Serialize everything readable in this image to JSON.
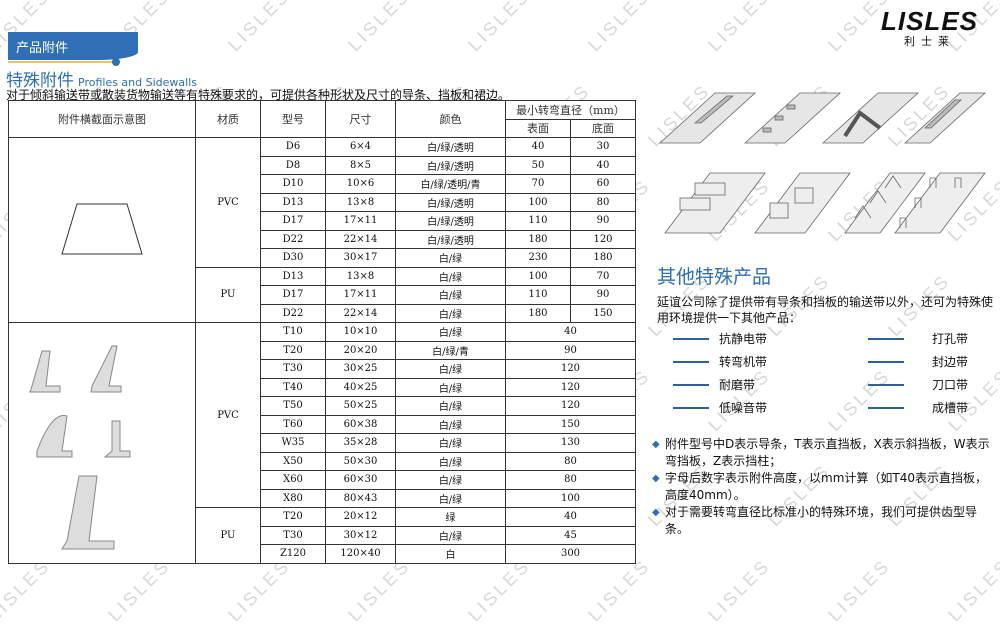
{
  "header": {
    "tab_label": "产品附件",
    "title": "特殊附件",
    "title_en": "Profiles and Sidewalls",
    "description": "对于倾斜输送带或散装货物输送等有特殊要求的，可提供各种形状及尺寸的导条、挡板和裙边。"
  },
  "logo": {
    "brand": "LISLES",
    "brand_cn": "利士莱"
  },
  "watermark": "LISLES",
  "table": {
    "headers": {
      "diagram": "附件横截面示意图",
      "material": "材质",
      "model": "型号",
      "size": "尺寸",
      "color": "颜色",
      "min_diameter": "最小转弯直径（mm）",
      "surface": "表面",
      "bottom": "底面"
    },
    "groups": [
      {
        "material": "PVC",
        "section": 1,
        "rows": [
          [
            "D6",
            "6×4",
            "白/绿/透明",
            "40",
            "30"
          ],
          [
            "D8",
            "8×5",
            "白/绿/透明",
            "50",
            "40"
          ],
          [
            "D10",
            "10×6",
            "白/绿/透明/青",
            "70",
            "60"
          ],
          [
            "D13",
            "13×8",
            "白/绿/透明",
            "100",
            "80"
          ],
          [
            "D17",
            "17×11",
            "白/绿/透明",
            "110",
            "90"
          ],
          [
            "D22",
            "22×14",
            "白/绿/透明",
            "180",
            "120"
          ],
          [
            "D30",
            "30×17",
            "白/绿",
            "230",
            "180"
          ]
        ]
      },
      {
        "material": "PU",
        "section": 1,
        "rows": [
          [
            "D13",
            "13×8",
            "白/绿",
            "100",
            "70"
          ],
          [
            "D17",
            "17×11",
            "白/绿",
            "110",
            "90"
          ],
          [
            "D22",
            "22×14",
            "白/绿",
            "180",
            "150"
          ]
        ]
      },
      {
        "material": "PVC",
        "section": 2,
        "rows": [
          [
            "T10",
            "10×10",
            "白/绿",
            "40"
          ],
          [
            "T20",
            "20×20",
            "白/绿/青",
            "90"
          ],
          [
            "T30",
            "30×25",
            "白/绿",
            "120"
          ],
          [
            "T40",
            "40×25",
            "白/绿",
            "120"
          ],
          [
            "T50",
            "50×25",
            "白/绿",
            "120"
          ],
          [
            "T60",
            "60×38",
            "白/绿",
            "150"
          ],
          [
            "W35",
            "35×28",
            "白/绿",
            "130"
          ],
          [
            "X50",
            "50×30",
            "白/绿",
            "80"
          ],
          [
            "X60",
            "60×30",
            "白/绿",
            "80"
          ],
          [
            "X80",
            "80×43",
            "白/绿",
            "100"
          ]
        ]
      },
      {
        "material": "PU",
        "section": 2,
        "rows": [
          [
            "T20",
            "20×12",
            "绿",
            "40"
          ],
          [
            "T30",
            "30×12",
            "白/绿",
            "45"
          ],
          [
            "Z120",
            "120×40",
            "白",
            "300"
          ]
        ]
      }
    ]
  },
  "other": {
    "title": "其他特殊产品",
    "description": "延谊公司除了提供带有导条和挡板的输送带以外，还可为特殊使用环境提供一下其他产品：",
    "products_left": [
      "抗静电带",
      "转弯机带",
      "耐磨带",
      "低噪音带"
    ],
    "products_right": [
      "打孔带",
      "封边带",
      "刀口带",
      "成槽带"
    ],
    "notes": [
      "附件型号中D表示导条，T表示直挡板，X表示斜挡板，W表示弯挡板，Z表示挡柱；",
      "字母后数字表示附件高度，以mm计算（如T40表示直挡板，高度40mm）。",
      "对于需要转弯直径比标准小的特殊环境，我们可提供齿型导条。"
    ]
  },
  "colors": {
    "accent": "#2e6fb5",
    "dash": "#2e5f9e"
  }
}
